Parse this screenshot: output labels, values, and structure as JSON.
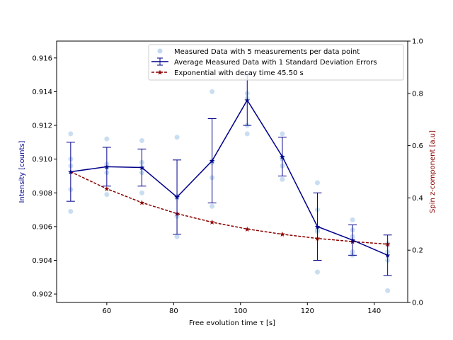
{
  "chart_data": {
    "type": "scatter",
    "xlabel": "Free evolution time τ [s]",
    "ylabel": "Intensity [counts]",
    "ylabel_right": "Spin z-component [a.u]",
    "xlim": [
      45,
      150
    ],
    "ylim": [
      0.9015,
      0.917
    ],
    "ylim_right": [
      0.0,
      1.0
    ],
    "x_ticks": [
      "60",
      "80",
      "100",
      "120",
      "140"
    ],
    "y_ticks": [
      "0.902",
      "0.904",
      "0.906",
      "0.908",
      "0.910",
      "0.912",
      "0.914",
      "0.916"
    ],
    "y_ticks_right": [
      "0.0",
      "0.2",
      "0.4",
      "0.6",
      "0.8",
      "1.0"
    ],
    "legend_position": "top-right",
    "colors": {
      "measured": "#a6c8e8",
      "average": "#00008b",
      "exponential": "#8b0000",
      "right_axis_label": "#8b0000",
      "left_axis_label": "#00008b"
    },
    "series": [
      {
        "name": "Measured Data with 5 measurements per data point",
        "type": "scatter",
        "points": [
          [
            49.2,
            0.9115
          ],
          [
            49.2,
            0.91
          ],
          [
            49.2,
            0.9096
          ],
          [
            49.2,
            0.9082
          ],
          [
            49.2,
            0.9069
          ],
          [
            60.0,
            0.9112
          ],
          [
            60.0,
            0.9097
          ],
          [
            60.0,
            0.9095
          ],
          [
            60.0,
            0.9092
          ],
          [
            60.0,
            0.9079
          ],
          [
            70.5,
            0.9111
          ],
          [
            70.5,
            0.9098
          ],
          [
            70.5,
            0.9095
          ],
          [
            70.5,
            0.9092
          ],
          [
            70.5,
            0.908
          ],
          [
            81.0,
            0.9113
          ],
          [
            81.0,
            0.9078
          ],
          [
            81.0,
            0.9077
          ],
          [
            81.0,
            0.9066
          ],
          [
            81.0,
            0.9054
          ],
          [
            91.5,
            0.914
          ],
          [
            91.5,
            0.9099
          ],
          [
            91.5,
            0.9098
          ],
          [
            91.5,
            0.9089
          ],
          [
            91.5,
            0.9072
          ],
          [
            102.0,
            0.915
          ],
          [
            102.0,
            0.9139
          ],
          [
            102.0,
            0.9136
          ],
          [
            102.0,
            0.912
          ],
          [
            102.0,
            0.9115
          ],
          [
            112.5,
            0.9115
          ],
          [
            112.5,
            0.9101
          ],
          [
            112.5,
            0.91
          ],
          [
            112.5,
            0.9096
          ],
          [
            112.5,
            0.9088
          ],
          [
            123.0,
            0.9086
          ],
          [
            123.0,
            0.907
          ],
          [
            123.0,
            0.9058
          ],
          [
            123.0,
            0.9057
          ],
          [
            123.0,
            0.9033
          ],
          [
            133.5,
            0.9064
          ],
          [
            133.5,
            0.9058
          ],
          [
            133.5,
            0.9054
          ],
          [
            133.5,
            0.9045
          ],
          [
            133.5,
            0.9043
          ],
          [
            144.0,
            0.905
          ],
          [
            144.0,
            0.9049
          ],
          [
            144.0,
            0.9045
          ],
          [
            144.0,
            0.904
          ],
          [
            144.0,
            0.9022
          ]
        ]
      },
      {
        "name": "Average Measured Data with 1 Standard Deviation Errors",
        "type": "errorbar",
        "x": [
          49.2,
          60.0,
          70.5,
          81.0,
          91.5,
          102.0,
          112.5,
          123.0,
          133.5,
          144.0
        ],
        "y": [
          0.90925,
          0.90955,
          0.9095,
          0.90775,
          0.9099,
          0.9135,
          0.91015,
          0.906,
          0.9052,
          0.9043
        ],
        "err": [
          0.00175,
          0.00115,
          0.0011,
          0.0022,
          0.0025,
          0.0015,
          0.00115,
          0.002,
          0.0009,
          0.0012
        ]
      },
      {
        "name": "Exponential with decay time 45.50 s",
        "type": "line",
        "axis": "right",
        "x": [
          49.2,
          60.0,
          70.5,
          81.0,
          91.5,
          102.0,
          112.5,
          123.0,
          133.5,
          144.0
        ],
        "y": [
          0.5,
          0.435,
          0.382,
          0.34,
          0.307,
          0.281,
          0.261,
          0.245,
          0.233,
          0.223
        ]
      }
    ]
  }
}
